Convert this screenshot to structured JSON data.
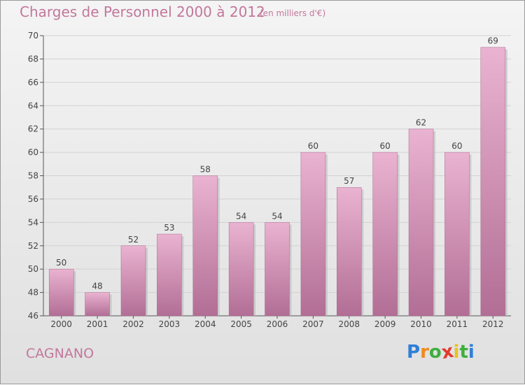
{
  "header": {
    "title": "Charges de Personnel 2000 à 2012",
    "subtitle": "(en milliers d'€)"
  },
  "footer": {
    "commune": "CAGNANO",
    "logo_letters": [
      "P",
      "r",
      "o",
      "x",
      "i",
      "t",
      "i"
    ],
    "logo_colors": [
      "#2e7fd8",
      "#ef8a1e",
      "#3fae3f",
      "#e23a2b",
      "#e9c21c",
      "#3fae3f",
      "#2e7fd8"
    ]
  },
  "colors": {
    "bar_top": "#eab3d1",
    "bar_bottom": "#b26e95",
    "title": "#c2779b"
  },
  "chart_data": {
    "type": "bar",
    "title": "Charges de Personnel 2000 à 2012",
    "subtitle": "(en milliers d'€)",
    "xlabel": "",
    "ylabel": "",
    "categories": [
      "2000",
      "2001",
      "2002",
      "2003",
      "2004",
      "2005",
      "2006",
      "2007",
      "2008",
      "2009",
      "2010",
      "2011",
      "2012"
    ],
    "values": [
      50,
      48,
      52,
      53,
      58,
      54,
      54,
      60,
      57,
      60,
      62,
      60,
      69
    ],
    "ylim": [
      46,
      70
    ],
    "yticks": [
      46,
      48,
      50,
      52,
      54,
      56,
      58,
      60,
      62,
      64,
      66,
      68,
      70
    ],
    "grid": true
  }
}
